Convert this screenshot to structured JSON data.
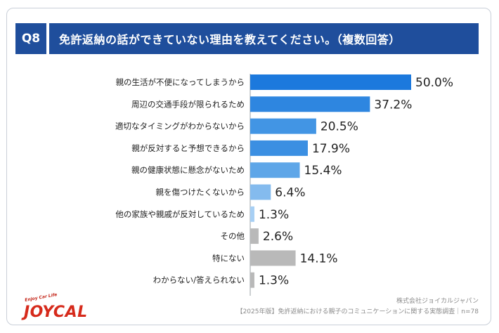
{
  "header": {
    "q_label": "Q8",
    "title": "免許返納の話ができていない理由を教えてください。（複数回答）"
  },
  "chart_data": {
    "type": "bar",
    "orientation": "horizontal",
    "unit": "%",
    "xlim": [
      0,
      50
    ],
    "categories": [
      "親の生活が不便になってしまうから",
      "周辺の交通手段が限られるため",
      "適切なタイミングがわからないから",
      "親が反対すると予想できるから",
      "親の健康状態に懸念がないため",
      "親を傷つけたくないから",
      "他の家族や親戚が反対しているため",
      "その他",
      "特にない",
      "わからない/答えられない"
    ],
    "values": [
      50.0,
      37.2,
      20.5,
      17.9,
      15.4,
      6.4,
      1.3,
      2.6,
      14.1,
      1.3
    ],
    "labels": [
      "50.0%",
      "37.2%",
      "20.5%",
      "17.9%",
      "15.4%",
      "6.4%",
      "1.3%",
      "2.6%",
      "14.1%",
      "1.3%"
    ],
    "colors": [
      "#1c79dd",
      "#2e86e0",
      "#4295e4",
      "#3b8fe2",
      "#5ea6e8",
      "#84bbee",
      "#a7cff4",
      "#b9b9b9",
      "#b9b9b9",
      "#b9b9b9"
    ]
  },
  "footer": {
    "logo_small": "Enjoy Car Life",
    "logo_main": "JOYCAL",
    "company": "株式会社ジョイカルジャパン",
    "source": "【2025年版】免許返納における親子のコミュニケーションに関する実態調査｜n=78"
  }
}
